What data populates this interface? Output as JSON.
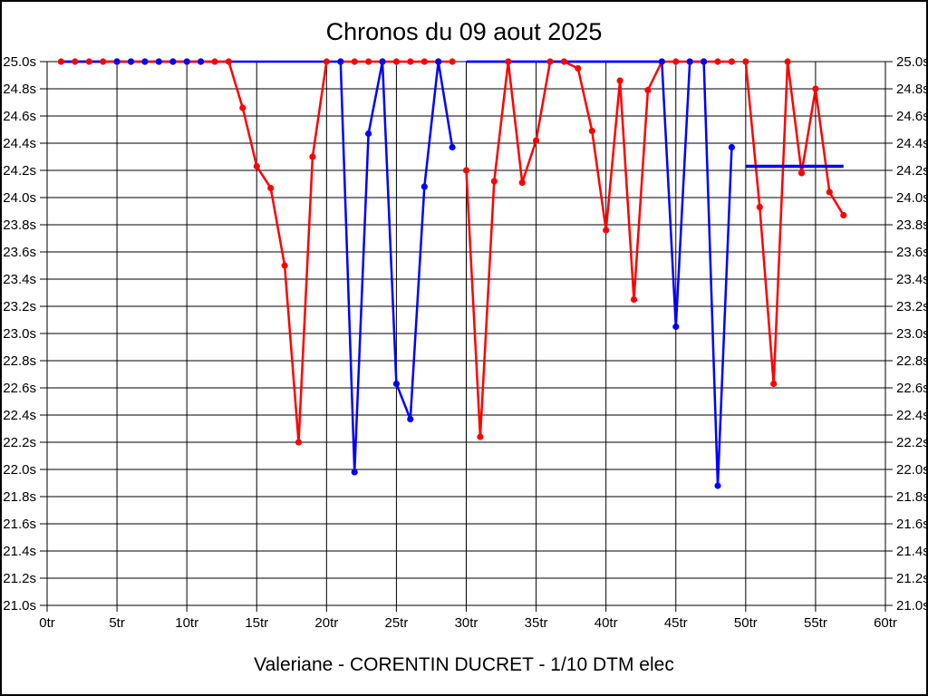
{
  "chart_data": {
    "type": "line",
    "title": "Chronos du 09 aout 2025",
    "caption": "Valeriane - CORENTIN DUCRET - 1/10 DTM elec",
    "x_unit": "tr",
    "y_unit": "s",
    "xlim": [
      0,
      60
    ],
    "ylim": [
      21.0,
      25.0
    ],
    "grid": true,
    "x_tick_labels": [
      "0tr",
      "5tr",
      "10tr",
      "15tr",
      "20tr",
      "25tr",
      "30tr",
      "35tr",
      "40tr",
      "45tr",
      "50tr",
      "55tr",
      "60tr"
    ],
    "y_tick_labels": [
      "25.0s",
      "24.8s",
      "24.6s",
      "24.4s",
      "24.2s",
      "24.0s",
      "23.8s",
      "23.6s",
      "23.4s",
      "23.2s",
      "23.0s",
      "22.8s",
      "22.6s",
      "22.4s",
      "22.2s",
      "22.0s",
      "21.8s",
      "21.6s",
      "21.4s",
      "21.2s",
      "21.0s"
    ],
    "series": [
      {
        "name": "blue-driver-lap-times",
        "color": "#0000ff",
        "start_lap": 1,
        "gaps_after_laps": [
          29
        ],
        "values": [
          25.0,
          25.0,
          25.0,
          25.0,
          25.0,
          25.0,
          25.0,
          25.0,
          25.0,
          25.0,
          25.0,
          25.0,
          25.0,
          25.0,
          25.0,
          25.0,
          25.0,
          25.0,
          25.0,
          25.0,
          25.0,
          21.98,
          24.47,
          25.0,
          22.63,
          22.37,
          24.08,
          25.0,
          24.37,
          25.0,
          25.0,
          25.0,
          25.0,
          25.0,
          25.0,
          25.0,
          25.0,
          25.0,
          25.0,
          25.0,
          25.0,
          25.0,
          25.0,
          25.0,
          23.05,
          25.0,
          25.0,
          21.88,
          24.37
        ]
      },
      {
        "name": "red-driver-lap-times",
        "color": "#ff0000",
        "start_lap": 1,
        "gaps_after_laps": [
          20,
          29,
          49
        ],
        "values": [
          25.0,
          25.0,
          25.0,
          25.0,
          25.0,
          25.0,
          25.0,
          25.0,
          25.0,
          25.0,
          25.0,
          25.0,
          25.0,
          24.66,
          24.23,
          24.07,
          23.5,
          22.2,
          24.3,
          25.0,
          25.0,
          25.0,
          25.0,
          25.0,
          25.0,
          25.0,
          25.0,
          25.0,
          25.0,
          24.2,
          22.24,
          24.12,
          25.0,
          24.11,
          24.42,
          25.0,
          25.0,
          24.95,
          24.49,
          23.76,
          24.86,
          23.25,
          24.79,
          25.0,
          25.0,
          25.0,
          25.0,
          25.0,
          25.0,
          25.0,
          23.93,
          22.63,
          25.0,
          24.18,
          24.8,
          24.04,
          23.87
        ]
      }
    ],
    "average_line": {
      "name": "blue-average-line",
      "color": "#0000ff",
      "value": 24.23,
      "from_x": 50,
      "to_x": 57
    },
    "render_hints": {
      "blue_top_segments": [
        [
          1,
          4
        ],
        [
          30,
          44
        ]
      ],
      "blue_top_dot_laps": [
        5,
        6,
        7,
        8,
        9,
        10,
        11,
        21,
        24,
        28,
        44,
        46,
        47
      ]
    }
  }
}
